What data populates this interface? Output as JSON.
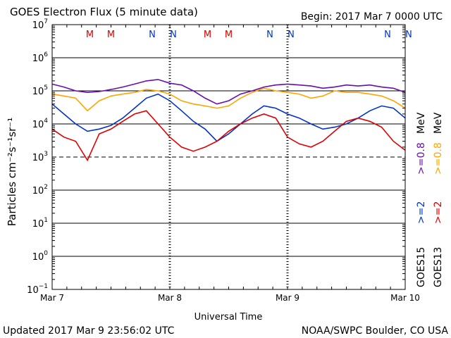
{
  "header": {
    "title": "GOES Electron Flux (5 minute data)",
    "begin": "Begin: 2017 Mar 7 0000 UTC"
  },
  "footer": {
    "updated": "Updated 2017 Mar  9 23:56:02 UTC",
    "credit": "NOAA/SWPC Boulder, CO USA"
  },
  "colors": {
    "goes13_ge08": "#ffa500",
    "goes13_ge2": "#e00000",
    "goes15_ge08": "#6a0dad",
    "goes15_ge2": "#0033cc",
    "m_marker": "#dd0000",
    "n_marker": "#0033cc"
  },
  "chart_data": {
    "type": "line",
    "title": "GOES Electron Flux (5 minute data)",
    "xlabel": "Universal Time",
    "ylabel": "Particles cm⁻²s⁻¹sr⁻¹",
    "xlim": [
      0,
      3
    ],
    "x_tick_labels": [
      "Mar 7",
      "Mar 8",
      "Mar 9",
      "Mar 10"
    ],
    "y_scale": "log",
    "ylim": [
      0.1,
      10000000
    ],
    "y_tick_exponents": [
      -1,
      0,
      1,
      2,
      3,
      4,
      5,
      6,
      7
    ],
    "reference_line": 1000,
    "grid": "horizontal at each decade",
    "legend_groups": [
      {
        "label": "GOES15",
        "entries": [
          ">=2",
          ">=0.8"
        ],
        "suffix": "MeV"
      },
      {
        "label": "GOES13",
        "entries": [
          ">=2",
          ">=0.8"
        ],
        "suffix": "MeV"
      }
    ],
    "markers": [
      {
        "label": "M",
        "x": 0.32
      },
      {
        "label": "M",
        "x": 0.5
      },
      {
        "label": "N",
        "x": 0.85
      },
      {
        "label": "N",
        "x": 1.03
      },
      {
        "label": "M",
        "x": 1.32
      },
      {
        "label": "M",
        "x": 1.5
      },
      {
        "label": "N",
        "x": 1.85
      },
      {
        "label": "N",
        "x": 2.03
      },
      {
        "label": "N",
        "x": 2.85
      },
      {
        "label": "N",
        "x": 3.03
      }
    ],
    "series": [
      {
        "key": "goes15_ge08",
        "color": "#6a0dad",
        "x": [
          0,
          0.1,
          0.2,
          0.3,
          0.4,
          0.5,
          0.6,
          0.7,
          0.8,
          0.9,
          1.0,
          1.1,
          1.2,
          1.3,
          1.4,
          1.5,
          1.6,
          1.7,
          1.8,
          1.9,
          2.0,
          2.1,
          2.2,
          2.3,
          2.4,
          2.5,
          2.6,
          2.7,
          2.8,
          2.9,
          3.0
        ],
        "values": [
          160000,
          130000,
          100000,
          90000,
          95000,
          110000,
          130000,
          160000,
          200000,
          220000,
          170000,
          150000,
          100000,
          60000,
          40000,
          50000,
          80000,
          100000,
          130000,
          150000,
          160000,
          150000,
          140000,
          120000,
          130000,
          150000,
          140000,
          150000,
          130000,
          120000,
          90000
        ]
      },
      {
        "key": "goes13_ge08",
        "color": "#ffa500",
        "x": [
          0,
          0.1,
          0.2,
          0.3,
          0.4,
          0.5,
          0.6,
          0.7,
          0.8,
          0.9,
          1.0,
          1.1,
          1.2,
          1.3,
          1.4,
          1.5,
          1.6,
          1.7,
          1.8,
          1.9,
          2.0,
          2.1,
          2.2,
          2.3,
          2.4,
          2.5,
          2.6,
          2.7,
          2.8,
          2.9,
          3.0
        ],
        "values": [
          80000,
          70000,
          60000,
          25000,
          50000,
          70000,
          80000,
          90000,
          110000,
          100000,
          80000,
          50000,
          40000,
          35000,
          30000,
          35000,
          60000,
          90000,
          120000,
          100000,
          90000,
          80000,
          60000,
          70000,
          100000,
          90000,
          90000,
          80000,
          70000,
          50000,
          30000
        ]
      },
      {
        "key": "goes15_ge2",
        "color": "#0033cc",
        "x": [
          0,
          0.1,
          0.2,
          0.3,
          0.4,
          0.5,
          0.6,
          0.7,
          0.8,
          0.9,
          1.0,
          1.1,
          1.2,
          1.3,
          1.4,
          1.5,
          1.6,
          1.7,
          1.8,
          1.9,
          2.0,
          2.1,
          2.2,
          2.3,
          2.4,
          2.5,
          2.6,
          2.7,
          2.8,
          2.9,
          3.0
        ],
        "values": [
          40000,
          20000,
          10000,
          6000,
          7000,
          9000,
          15000,
          30000,
          60000,
          80000,
          50000,
          25000,
          12000,
          7000,
          3000,
          5000,
          10000,
          20000,
          35000,
          30000,
          20000,
          15000,
          10000,
          7000,
          8000,
          10000,
          15000,
          25000,
          35000,
          30000,
          15000
        ]
      },
      {
        "key": "goes13_ge2",
        "color": "#e00000",
        "x": [
          0,
          0.1,
          0.2,
          0.3,
          0.4,
          0.5,
          0.6,
          0.7,
          0.8,
          0.9,
          1.0,
          1.1,
          1.2,
          1.3,
          1.4,
          1.5,
          1.6,
          1.7,
          1.8,
          1.9,
          2.0,
          2.1,
          2.2,
          2.3,
          2.4,
          2.5,
          2.6,
          2.7,
          2.8,
          2.9,
          3.0
        ],
        "values": [
          7000,
          4000,
          3000,
          800,
          5000,
          7000,
          12000,
          20000,
          25000,
          10000,
          4000,
          2000,
          1500,
          2000,
          3000,
          6000,
          10000,
          15000,
          20000,
          15000,
          4000,
          2500,
          2000,
          3000,
          6000,
          12000,
          15000,
          12000,
          8000,
          3000,
          1600
        ]
      }
    ]
  }
}
